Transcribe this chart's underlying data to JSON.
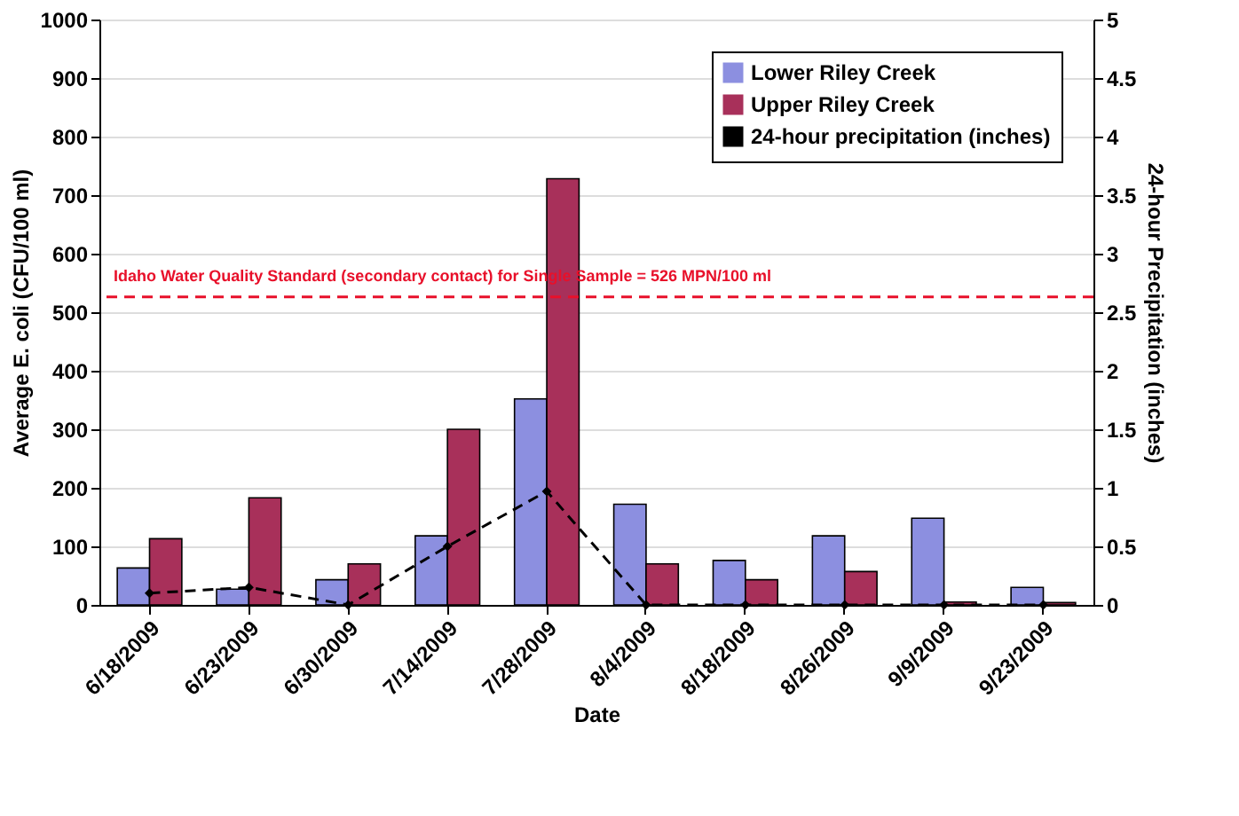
{
  "chart_data": {
    "type": "bar",
    "xlabel": "Date",
    "ylabel": "Average E. coli (CFU/100 ml)",
    "y2label": "24-hour Precipitation (inches)",
    "categories": [
      "6/18/2009",
      "6/23/2009",
      "6/30/2009",
      "7/14/2009",
      "7/28/2009",
      "8/4/2009",
      "8/18/2009",
      "8/26/2009",
      "9/9/2009",
      "9/23/2009"
    ],
    "series": [
      {
        "name": "Lower Riley Creek",
        "color": "#8c8fe0",
        "values": [
          63,
          27,
          43,
          118,
          352,
          172,
          76,
          118,
          148,
          30
        ]
      },
      {
        "name": "Upper Riley Creek",
        "color": "#a8305a",
        "values": [
          113,
          183,
          70,
          300,
          728,
          70,
          43,
          57,
          5,
          4
        ]
      },
      {
        "name": "24-hour precipitation (inches)",
        "type": "line",
        "axis": "y2",
        "color": "#000000",
        "line_style": "dashed",
        "marker": "diamond",
        "values": [
          0.1,
          0.15,
          0,
          0.5,
          0.97,
          0,
          0,
          0,
          0,
          0
        ]
      }
    ],
    "ylim": [
      0,
      1000
    ],
    "yticks": [
      0,
      100,
      200,
      300,
      400,
      500,
      600,
      700,
      800,
      900,
      1000
    ],
    "y2lim": [
      0,
      5
    ],
    "y2ticks": [
      0,
      0.5,
      1,
      1.5,
      2,
      2.5,
      3,
      3.5,
      4,
      4.5,
      5
    ],
    "ref_lines": [
      {
        "axis": "y",
        "value": 526,
        "label": "Idaho Water Quality Standard (secondary contact) for Single Sample = 526 MPN/100 ml",
        "color": "#e8102a",
        "line_style": "dashed"
      }
    ],
    "grid": "y",
    "legend": "top right"
  }
}
